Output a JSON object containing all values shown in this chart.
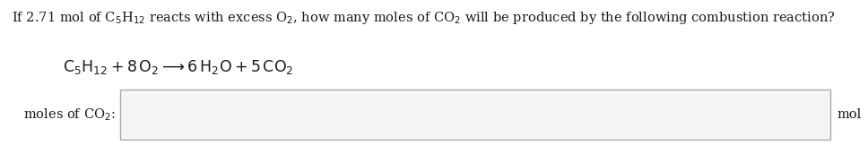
{
  "bg_color": "#ffffff",
  "text_color": "#1a1a1a",
  "line1": "If 2.71 mol of C$_5$H$_{12}$ reacts with excess O$_2$, how many moles of CO$_2$ will be produced by the following combustion reaction?",
  "label_text": "moles of CO$_2$:",
  "unit_text": "mol",
  "fontsize_main": 10.5,
  "fontsize_equation": 12.5,
  "fontsize_label": 10.5,
  "fig_width": 9.68,
  "fig_height": 1.62,
  "dpi": 100
}
